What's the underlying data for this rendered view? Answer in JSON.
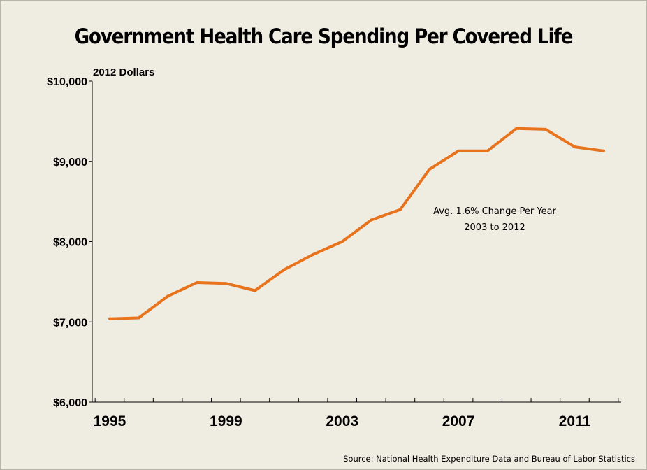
{
  "chart_data": {
    "type": "line",
    "title": "Government Health Care Spending Per Covered Life",
    "unit_label": "2012 Dollars",
    "x": [
      1995,
      1996,
      1997,
      1998,
      1999,
      2000,
      2001,
      2002,
      2003,
      2004,
      2005,
      2006,
      2007,
      2008,
      2009,
      2010,
      2011,
      2012
    ],
    "series": [
      {
        "values": [
          7040,
          7050,
          7320,
          7490,
          7480,
          7390,
          7650,
          7840,
          8000,
          8270,
          8400,
          8900,
          9130,
          9130,
          9410,
          9400,
          9180,
          9130
        ],
        "color": "#e8731d"
      }
    ],
    "xlim": [
      1994.4,
      2012.6
    ],
    "ylim": [
      6000,
      10000
    ],
    "y_ticks": [
      {
        "value": 6000,
        "label": "$6,000"
      },
      {
        "value": 7000,
        "label": "$7,000"
      },
      {
        "value": 8000,
        "label": "$8,000"
      },
      {
        "value": 9000,
        "label": "$9,000"
      },
      {
        "value": 10000,
        "label": "$10,000"
      }
    ],
    "x_tick_labels": [
      {
        "value": 1995,
        "label": "1995"
      },
      {
        "value": 1999,
        "label": "1999"
      },
      {
        "value": 2003,
        "label": "2003"
      },
      {
        "value": 2007,
        "label": "2007"
      },
      {
        "value": 2011,
        "label": "2011"
      }
    ],
    "annotation": {
      "lines": [
        "Avg. 1.6% Change Per Year",
        "2003 to 2012"
      ]
    },
    "source": "Source: National Health Expenditure Data and Bureau of Labor Statistics",
    "grid": false,
    "legend": "none"
  }
}
